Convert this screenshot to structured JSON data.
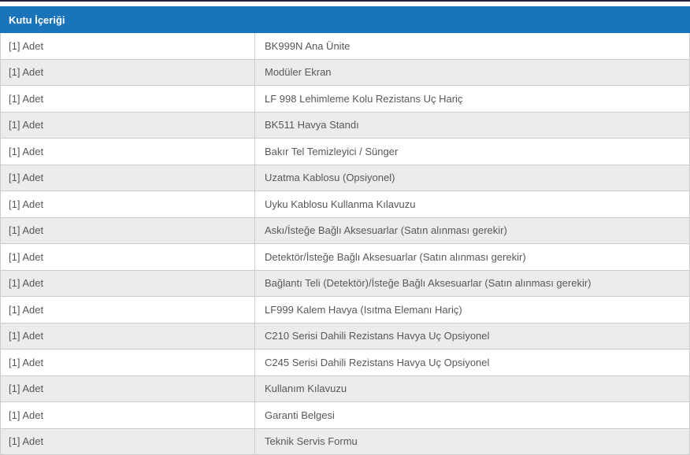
{
  "colors": {
    "top_line": "#23233f",
    "header_bg": "#1a74ba",
    "header_text": "#ffffff",
    "row_alt_bg": "#ececec",
    "border": "#cccccc",
    "text": "#58585a"
  },
  "table": {
    "title": "Kutu İçeriği",
    "rows": [
      {
        "quantity": "[1] Adet",
        "item": "BK999N Ana Ünite"
      },
      {
        "quantity": "[1] Adet",
        "item": "Modüler Ekran"
      },
      {
        "quantity": "[1] Adet",
        "item": "LF 998 Lehimleme Kolu Rezistans Uç Hariç"
      },
      {
        "quantity": "[1] Adet",
        "item": "BK511 Havya Standı"
      },
      {
        "quantity": "[1] Adet",
        "item": "Bakır Tel Temizleyici / Sünger"
      },
      {
        "quantity": "[1] Adet",
        "item": "Uzatma Kablosu (Opsiyonel)"
      },
      {
        "quantity": "[1] Adet",
        "item": "Uyku Kablosu Kullanma Kılavuzu"
      },
      {
        "quantity": "[1] Adet",
        "item": "Askı/İsteğe Bağlı Aksesuarlar (Satın alınması gerekir)"
      },
      {
        "quantity": "[1] Adet",
        "item": "Detektör/İsteğe Bağlı Aksesuarlar (Satın alınması gerekir)"
      },
      {
        "quantity": "[1] Adet",
        "item": "Bağlantı Teli (Detektör)/İsteğe Bağlı Aksesuarlar (Satın alınması gerekir)"
      },
      {
        "quantity": "[1] Adet",
        "item": "LF999 Kalem Havya (Isıtma Elemanı Hariç)"
      },
      {
        "quantity": "[1] Adet",
        "item": "C210 Serisi Dahili Rezistans Havya Uç Opsiyonel"
      },
      {
        "quantity": "[1] Adet",
        "item": "C245 Serisi Dahili Rezistans Havya Uç Opsiyonel"
      },
      {
        "quantity": "[1] Adet",
        "item": "Kullanım Kılavuzu"
      },
      {
        "quantity": "[1] Adet",
        "item": "Garanti Belgesi"
      },
      {
        "quantity": "[1] Adet",
        "item": "Teknik Servis Formu"
      }
    ]
  }
}
